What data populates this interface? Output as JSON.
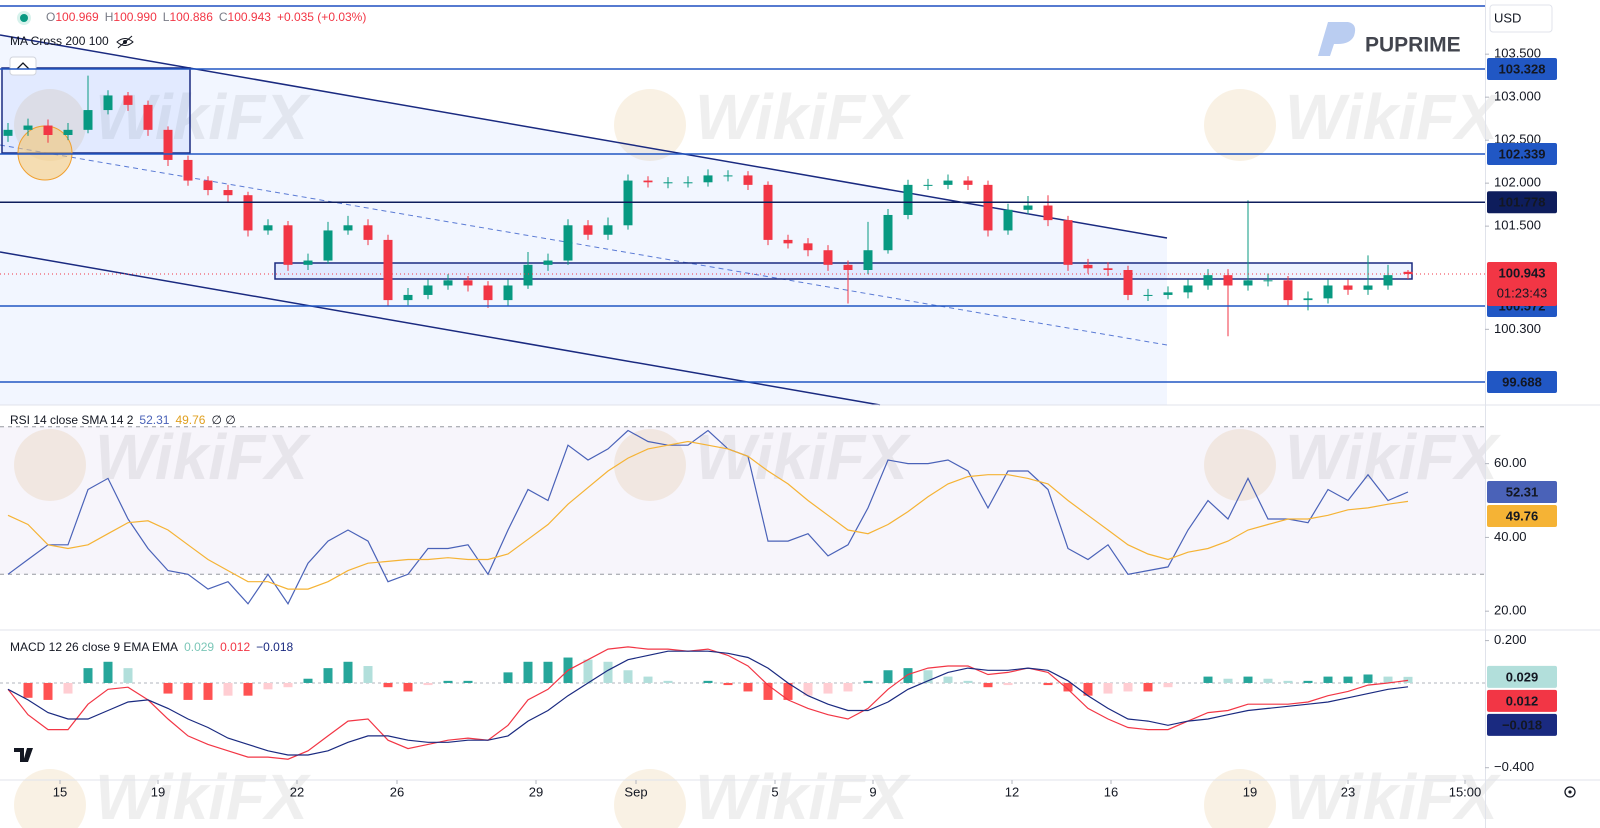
{
  "header": {
    "ohlc": [
      {
        "k": "O",
        "v": "100.969"
      },
      {
        "k": "H",
        "v": "100.990"
      },
      {
        "k": "L",
        "v": "100.886"
      },
      {
        "k": "C",
        "v": "100.943"
      }
    ],
    "change": "+0.035 (+0.03%)",
    "indicator": "MA Cross 200 100",
    "currency": "USD",
    "brand": "PUPRIME",
    "watermark": "WikiFX",
    "countdown": "01:23:43"
  },
  "chart_data": [
    {
      "type": "candlestick",
      "open": [
        102.55,
        102.62,
        102.67,
        102.56,
        102.62,
        102.85,
        103.02,
        102.91,
        102.62,
        102.27,
        102.03,
        101.92,
        101.86,
        101.45,
        101.51,
        101.05,
        101.1,
        101.45,
        101.51,
        101.34,
        100.64,
        100.7,
        100.81,
        100.87,
        100.81,
        100.64,
        100.81,
        101.05,
        101.1,
        101.51,
        101.4,
        101.51,
        102.03,
        102.01,
        102.01,
        102.01,
        102.09,
        102.09,
        101.98,
        101.34,
        101.3,
        101.22,
        101.05,
        100.99,
        101.22,
        101.63,
        101.98,
        101.98,
        102.03,
        101.98,
        101.45,
        101.69,
        101.74,
        101.57,
        101.05,
        101.01,
        100.99,
        100.7,
        100.7,
        100.73,
        100.81,
        100.93,
        100.81,
        100.87,
        100.87,
        100.64,
        100.66,
        100.81,
        100.76,
        100.81,
        100.969
      ],
      "high": [
        102.7,
        102.75,
        102.74,
        102.7,
        103.25,
        103.08,
        103.06,
        102.96,
        102.66,
        102.32,
        102.08,
        101.98,
        101.9,
        101.58,
        101.56,
        101.18,
        101.55,
        101.62,
        101.58,
        101.4,
        100.78,
        100.88,
        100.94,
        100.92,
        100.86,
        100.88,
        101.2,
        101.18,
        101.58,
        101.57,
        101.6,
        102.1,
        102.08,
        102.07,
        102.08,
        102.16,
        102.15,
        102.14,
        102.02,
        101.4,
        101.36,
        101.28,
        101.1,
        101.55,
        101.7,
        102.04,
        102.05,
        102.1,
        102.08,
        102.03,
        101.76,
        101.85,
        101.86,
        101.62,
        101.12,
        101.08,
        101.04,
        100.77,
        100.8,
        100.88,
        101.0,
        101.0,
        101.8,
        100.95,
        100.92,
        100.74,
        100.88,
        100.88,
        101.16,
        101.05,
        100.99
      ],
      "low": [
        102.48,
        102.55,
        102.47,
        102.5,
        102.58,
        102.8,
        102.84,
        102.55,
        102.2,
        101.97,
        101.86,
        101.78,
        101.38,
        101.4,
        100.98,
        100.99,
        101.06,
        101.4,
        101.28,
        100.57,
        100.58,
        100.65,
        100.76,
        100.74,
        100.55,
        100.57,
        100.77,
        100.98,
        101.05,
        101.34,
        101.34,
        101.46,
        101.95,
        101.94,
        101.95,
        101.96,
        102.02,
        101.92,
        101.28,
        101.24,
        101.15,
        100.98,
        100.6,
        100.94,
        101.18,
        101.58,
        101.92,
        101.93,
        101.92,
        101.38,
        101.4,
        101.64,
        101.5,
        100.98,
        100.95,
        100.92,
        100.64,
        100.63,
        100.65,
        100.66,
        100.76,
        100.22,
        100.75,
        100.8,
        100.58,
        100.52,
        100.6,
        100.7,
        100.7,
        100.76,
        100.886
      ],
      "close": [
        102.62,
        102.67,
        102.56,
        102.62,
        102.85,
        103.02,
        102.91,
        102.62,
        102.27,
        102.03,
        101.92,
        101.86,
        101.45,
        101.51,
        101.05,
        101.1,
        101.45,
        101.51,
        101.34,
        100.64,
        100.7,
        100.81,
        100.87,
        100.81,
        100.64,
        100.81,
        101.05,
        101.1,
        101.51,
        101.4,
        101.51,
        102.03,
        102.01,
        102.01,
        102.01,
        102.09,
        102.09,
        101.98,
        101.34,
        101.3,
        101.22,
        101.05,
        100.99,
        101.22,
        101.63,
        101.98,
        101.98,
        102.03,
        101.98,
        101.45,
        101.69,
        101.74,
        101.57,
        101.05,
        101.01,
        100.99,
        100.7,
        100.7,
        100.73,
        100.81,
        100.93,
        100.81,
        100.87,
        100.87,
        100.64,
        100.66,
        100.81,
        100.76,
        100.81,
        100.93,
        100.943
      ],
      "up_color": "#089981",
      "down_color": "#f23645",
      "ylim": [
        99.42,
        104.13
      ],
      "yticks": [
        {
          "value": 103.5,
          "label": "103.500"
        },
        {
          "value": 103,
          "label": "103.000"
        },
        {
          "value": 102.5,
          "label": "102.500"
        },
        {
          "value": 102,
          "label": "102.000"
        },
        {
          "value": 101.5,
          "label": "101.500"
        },
        {
          "value": 100.3,
          "label": "100.300"
        }
      ],
      "levels": [
        {
          "value": 103.328,
          "color": "#2157c4"
        },
        {
          "value": 102.339,
          "color": "#2157c4"
        },
        {
          "value": 101.778,
          "color": "#0e1d5c"
        },
        {
          "value": 100.572,
          "color": "#2157c4"
        },
        {
          "value": 99.688,
          "color": "#2157c4"
        }
      ],
      "xlim": [
        -0.4,
        73.85
      ],
      "xticks": [
        {
          "value": 2.6,
          "label": "15"
        },
        {
          "value": 7.5,
          "label": "19"
        },
        {
          "value": 14.45,
          "label": "22"
        },
        {
          "value": 19.45,
          "label": "26"
        },
        {
          "value": 26.4,
          "label": "29"
        },
        {
          "value": 31.4,
          "label": "Sep"
        },
        {
          "value": 38.35,
          "label": "5"
        },
        {
          "value": 43.25,
          "label": "9"
        },
        {
          "value": 50.2,
          "label": "12"
        },
        {
          "value": 55.15,
          "label": "16"
        },
        {
          "value": 62.1,
          "label": "19"
        },
        {
          "value": 67,
          "label": "23"
        },
        {
          "value": 72.85,
          "label": "15:00"
        }
      ]
    },
    {
      "type": "line",
      "title": "RSI 14 close SMA 14 2",
      "status": "∅ ∅",
      "series": [
        {
          "color": "#4a62b8",
          "values": [
            30,
            34,
            38,
            38,
            53,
            56,
            45,
            37,
            31,
            30,
            26,
            28,
            22,
            30,
            22,
            33,
            39,
            42,
            39,
            28,
            30,
            37,
            37,
            38,
            30,
            42,
            53,
            50,
            65,
            61,
            64,
            69,
            66,
            65,
            65,
            69,
            64,
            62,
            39,
            39,
            41,
            35,
            38,
            48,
            61,
            60,
            60,
            61,
            58,
            48,
            58,
            58,
            53,
            37,
            34,
            38,
            30,
            31,
            32,
            42,
            50,
            45,
            56,
            45,
            45,
            44,
            53,
            50,
            57,
            50,
            52.31
          ]
        },
        {
          "color": "#f5b335",
          "values": [
            46,
            43.5,
            38,
            37,
            38,
            41,
            44,
            44.5,
            42,
            38,
            34,
            31,
            28,
            28,
            26,
            26,
            28,
            31,
            33,
            33.5,
            34,
            34,
            34.5,
            34,
            34,
            35.5,
            39.5,
            43.5,
            49,
            53.5,
            58,
            61.5,
            64,
            65,
            66,
            65,
            64,
            62,
            58,
            54.5,
            50,
            46,
            42,
            41,
            43.5,
            47,
            51,
            54.5,
            56.5,
            57,
            57,
            56,
            54.5,
            50,
            46,
            42,
            38,
            35.5,
            34,
            36,
            37,
            39,
            42,
            43.5,
            45,
            45,
            46,
            47.5,
            48,
            49,
            49.76
          ]
        }
      ],
      "ylim": [
        14.9,
        75.9
      ],
      "yticks": [
        {
          "value": 60,
          "label": "60.00"
        },
        {
          "value": 40,
          "label": "40.00"
        },
        {
          "value": 20,
          "label": "20.00"
        }
      ],
      "bands": [
        70,
        30
      ]
    },
    {
      "type": "combo",
      "title": "MACD 12 26 close 9 EMA EMA",
      "histogram": {
        "values": [
          0.0,
          -0.07,
          -0.08,
          -0.05,
          0.07,
          0.1,
          0.07,
          0.0,
          -0.05,
          -0.08,
          -0.08,
          -0.06,
          -0.06,
          -0.03,
          -0.02,
          0.02,
          0.07,
          0.1,
          0.08,
          -0.02,
          -0.04,
          -0.01,
          0.01,
          0.01,
          0.0,
          0.05,
          0.1,
          0.1,
          0.12,
          0.11,
          0.1,
          0.06,
          0.03,
          0.01,
          0.0,
          0.01,
          -0.01,
          -0.04,
          -0.08,
          -0.08,
          -0.06,
          -0.05,
          -0.04,
          0.01,
          0.06,
          0.07,
          0.06,
          0.03,
          0.01,
          -0.02,
          -0.01,
          0.0,
          -0.01,
          -0.04,
          -0.06,
          -0.05,
          -0.04,
          -0.04,
          -0.02,
          0.0,
          0.03,
          0.02,
          0.03,
          0.02,
          0.01,
          0.01,
          0.03,
          0.03,
          0.04,
          0.03,
          0.029
        ],
        "colors": [
          "#26a69a",
          "#b2dfdb",
          "#ff5252",
          "#ffcdd2"
        ]
      },
      "series": [
        {
          "color": "#f23645",
          "values": [
            -0.03,
            -0.15,
            -0.22,
            -0.22,
            -0.1,
            -0.03,
            -0.02,
            -0.08,
            -0.17,
            -0.25,
            -0.29,
            -0.32,
            -0.35,
            -0.35,
            -0.36,
            -0.32,
            -0.25,
            -0.18,
            -0.17,
            -0.27,
            -0.31,
            -0.29,
            -0.27,
            -0.26,
            -0.27,
            -0.2,
            -0.08,
            -0.03,
            0.06,
            0.11,
            0.16,
            0.17,
            0.16,
            0.16,
            0.15,
            0.16,
            0.13,
            0.08,
            -0.01,
            -0.08,
            -0.12,
            -0.15,
            -0.17,
            -0.12,
            -0.03,
            0.04,
            0.07,
            0.08,
            0.08,
            0.04,
            0.05,
            0.07,
            0.05,
            -0.03,
            -0.12,
            -0.17,
            -0.21,
            -0.22,
            -0.22,
            -0.18,
            -0.14,
            -0.13,
            -0.1,
            -0.1,
            -0.1,
            -0.09,
            -0.06,
            -0.04,
            -0.01,
            0.0,
            0.012
          ]
        },
        {
          "color": "#1a2a80",
          "last_value_label": "−0.018",
          "values": [
            -0.03,
            -0.08,
            -0.14,
            -0.17,
            -0.17,
            -0.13,
            -0.09,
            -0.08,
            -0.12,
            -0.17,
            -0.21,
            -0.26,
            -0.29,
            -0.32,
            -0.34,
            -0.34,
            -0.32,
            -0.28,
            -0.25,
            -0.25,
            -0.27,
            -0.28,
            -0.28,
            -0.27,
            -0.27,
            -0.25,
            -0.18,
            -0.13,
            -0.06,
            0.0,
            0.06,
            0.11,
            0.13,
            0.15,
            0.15,
            0.15,
            0.14,
            0.12,
            0.07,
            0.0,
            -0.06,
            -0.1,
            -0.13,
            -0.13,
            -0.09,
            -0.03,
            0.01,
            0.05,
            0.07,
            0.06,
            0.06,
            0.07,
            0.06,
            0.01,
            -0.06,
            -0.12,
            -0.17,
            -0.18,
            -0.2,
            -0.18,
            -0.17,
            -0.15,
            -0.13,
            -0.12,
            -0.11,
            -0.1,
            -0.09,
            -0.07,
            -0.05,
            -0.03,
            -0.018
          ]
        }
      ],
      "ylim": [
        -0.458,
        0.25
      ],
      "yticks": [
        {
          "value": 0.2,
          "label": "0.200"
        },
        {
          "value": -0.4,
          "label": "−0.400"
        }
      ]
    }
  ]
}
